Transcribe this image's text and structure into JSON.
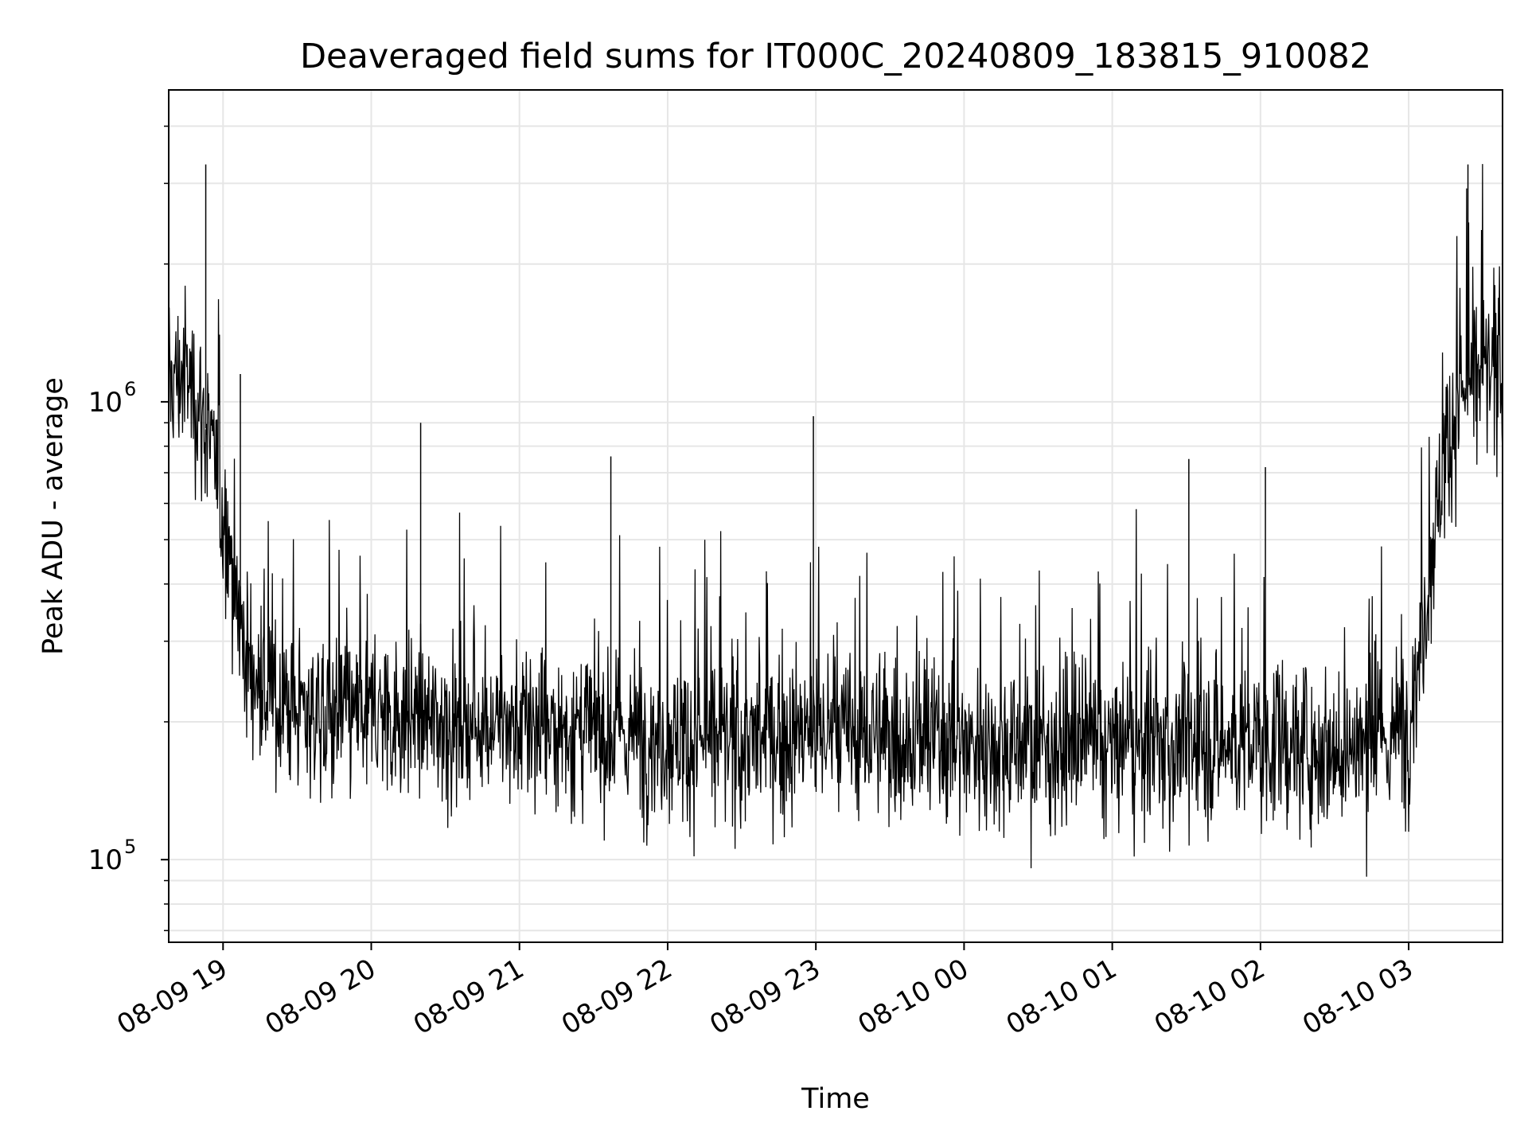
{
  "chart_data": {
    "type": "line",
    "title": "Deaveraged field sums for IT000C_20240809_183815_910082",
    "xlabel": "Time",
    "ylabel": "Peak ADU - average",
    "y_scale": "log",
    "x_range": [
      "2024-08-09T18:38",
      "2024-08-10T03:38"
    ],
    "ylim": [
      66000,
      4800000
    ],
    "grid": true,
    "x_ticks": [
      {
        "t": "2024-08-09T19:00",
        "label": "08-09 19"
      },
      {
        "t": "2024-08-09T20:00",
        "label": "08-09 20"
      },
      {
        "t": "2024-08-09T21:00",
        "label": "08-09 21"
      },
      {
        "t": "2024-08-09T22:00",
        "label": "08-09 22"
      },
      {
        "t": "2024-08-09T23:00",
        "label": "08-09 23"
      },
      {
        "t": "2024-08-10T00:00",
        "label": "08-10 00"
      },
      {
        "t": "2024-08-10T01:00",
        "label": "08-10 01"
      },
      {
        "t": "2024-08-10T02:00",
        "label": "08-10 02"
      },
      {
        "t": "2024-08-10T03:00",
        "label": "08-10 03"
      }
    ],
    "y_ticks": [
      {
        "value": 100000,
        "base": "10",
        "exp": "5"
      },
      {
        "value": 1000000,
        "base": "10",
        "exp": "6"
      }
    ],
    "series": [
      {
        "color": "#000000",
        "x": [
          "2024-08-09T18:38",
          "2024-08-09T18:45",
          "2024-08-09T18:50",
          "2024-08-09T18:55",
          "2024-08-09T19:00",
          "2024-08-09T19:04",
          "2024-08-09T19:08",
          "2024-08-09T19:12",
          "2024-08-09T19:20",
          "2024-08-09T19:30",
          "2024-08-09T19:45",
          "2024-08-09T20:00",
          "2024-08-09T20:30",
          "2024-08-09T21:00",
          "2024-08-09T21:30",
          "2024-08-09T22:00",
          "2024-08-09T22:30",
          "2024-08-09T23:00",
          "2024-08-09T23:30",
          "2024-08-10T00:00",
          "2024-08-10T00:30",
          "2024-08-10T01:00",
          "2024-08-10T01:30",
          "2024-08-10T02:00",
          "2024-08-10T02:30",
          "2024-08-10T02:50",
          "2024-08-10T03:00",
          "2024-08-10T03:05",
          "2024-08-10T03:10",
          "2024-08-10T03:15",
          "2024-08-10T03:20",
          "2024-08-10T03:25",
          "2024-08-10T03:30",
          "2024-08-10T03:38"
        ],
        "y": [
          1100000,
          1150000,
          1000000,
          800000,
          550000,
          450000,
          300000,
          250000,
          220000,
          215000,
          205000,
          210000,
          200000,
          195000,
          190000,
          185000,
          180000,
          190000,
          185000,
          180000,
          178000,
          175000,
          178000,
          180000,
          175000,
          178000,
          200000,
          300000,
          500000,
          800000,
          1000000,
          1100000,
          1150000,
          1180000
        ]
      }
    ],
    "annotations_spikes": [
      {
        "t": "2024-08-09T18:53",
        "value": 3300000
      },
      {
        "t": "2024-08-09T19:07",
        "value": 1150000
      },
      {
        "t": "2024-08-09T20:20",
        "value": 900000
      },
      {
        "t": "2024-08-09T22:59",
        "value": 930000
      },
      {
        "t": "2024-08-09T21:37",
        "value": 760000
      },
      {
        "t": "2024-08-10T01:31",
        "value": 750000
      },
      {
        "t": "2024-08-10T02:02",
        "value": 720000
      },
      {
        "t": "2024-08-10T03:24",
        "value": 3300000
      }
    ]
  }
}
